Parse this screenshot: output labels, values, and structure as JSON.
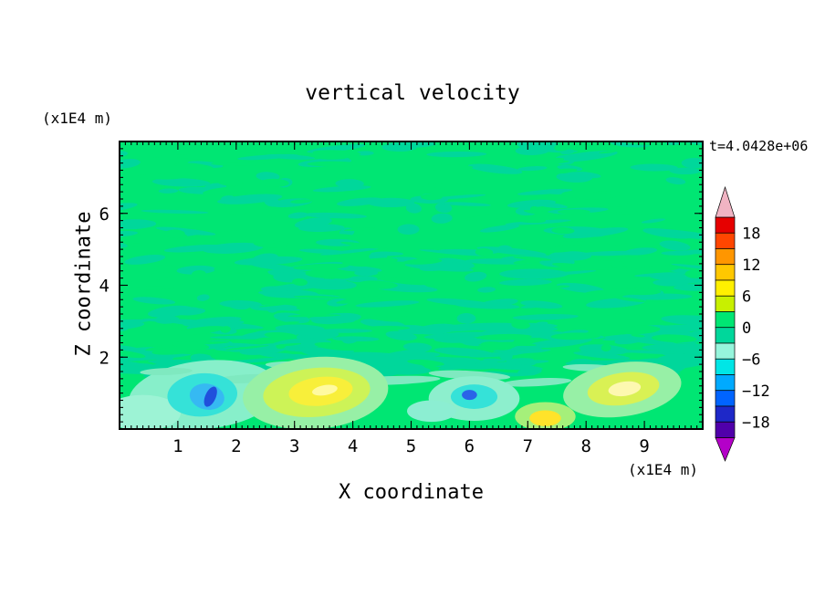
{
  "chart_data": {
    "type": "filled-contour",
    "title": "vertical velocity",
    "time_label": "t=4.0428e+06",
    "xlabel": "X coordinate",
    "zlabel": "Z coordinate",
    "x_unit_label": "(x1E4 m)",
    "z_unit_label": "(x1E4 m)",
    "xlim": [
      0,
      10
    ],
    "zlim": [
      0,
      8
    ],
    "x_tick_labels": [
      "1",
      "2",
      "3",
      "4",
      "5",
      "6",
      "7",
      "8",
      "9"
    ],
    "z_tick_labels": [
      "2",
      "4",
      "6"
    ],
    "x_minor_step": 0.1,
    "z_minor_step": 0.2,
    "field": {
      "base_color": "#00e673",
      "mottle_color": "#00d79b",
      "description": "vertical velocity near zero (green) over most of domain with weak teal mottling; near-surface extrema: downdraft cells (cyan/blue) near x=1.4 and x=6.1, updraft cells (yellow) near x=3.4, x=7.3 and x=8.6"
    },
    "texture": {
      "seed": 1337,
      "count": 250,
      "band_count": 80,
      "base_count": 140
    },
    "features": [
      {
        "x": 1.45,
        "z": 0.95,
        "rx": 1.3,
        "rz": 0.95,
        "rot": -6,
        "color": "#87efca"
      },
      {
        "x": 0.4,
        "z": 0.45,
        "rx": 0.65,
        "rz": 0.5,
        "rot": 0,
        "color": "#9df3d5"
      },
      {
        "x": 2.2,
        "z": 1.4,
        "rx": 0.55,
        "rz": 0.12,
        "rot": -3,
        "color": "#7fe9c0"
      },
      {
        "x": 3.3,
        "z": 1.75,
        "rx": 0.8,
        "rz": 0.13,
        "rot": 2,
        "color": "#7fe9c0"
      },
      {
        "x": 4.6,
        "z": 1.35,
        "rx": 0.9,
        "rz": 0.12,
        "rot": -2,
        "color": "#7fe9c0"
      },
      {
        "x": 6.0,
        "z": 1.5,
        "rx": 0.7,
        "rz": 0.12,
        "rot": 3,
        "color": "#7fe9c0"
      },
      {
        "x": 7.15,
        "z": 1.3,
        "rx": 0.6,
        "rz": 0.11,
        "rot": -3,
        "color": "#7fe9c0"
      },
      {
        "x": 8.1,
        "z": 1.7,
        "rx": 0.5,
        "rz": 0.1,
        "rot": 2,
        "color": "#7fe9c0"
      },
      {
        "x": 0.8,
        "z": 1.6,
        "rx": 0.45,
        "rz": 0.1,
        "rot": -2,
        "color": "#7fe9c0"
      },
      {
        "x": 1.42,
        "z": 0.95,
        "rx": 0.6,
        "rz": 0.6,
        "rot": -4,
        "color": "#35e2d8"
      },
      {
        "x": 1.5,
        "z": 0.9,
        "rx": 0.3,
        "rz": 0.36,
        "rot": 12,
        "color": "#36b9f2"
      },
      {
        "x": 1.56,
        "z": 0.9,
        "rx": 0.09,
        "rz": 0.3,
        "rot": 24,
        "color": "#2050dc"
      },
      {
        "x": 3.36,
        "z": 1.0,
        "rx": 1.25,
        "rz": 1.0,
        "rot": -5,
        "color": "#97f0a6"
      },
      {
        "x": 3.38,
        "z": 1.02,
        "rx": 0.92,
        "rz": 0.68,
        "rot": -5,
        "color": "#cdf357"
      },
      {
        "x": 3.45,
        "z": 1.05,
        "rx": 0.55,
        "rz": 0.4,
        "rot": -6,
        "color": "#f8ef3a"
      },
      {
        "x": 3.52,
        "z": 1.08,
        "rx": 0.22,
        "rz": 0.14,
        "rot": -10,
        "color": "#fffaa0"
      },
      {
        "x": 6.08,
        "z": 0.85,
        "rx": 0.78,
        "rz": 0.62,
        "rot": 0,
        "color": "#8defcd"
      },
      {
        "x": 6.08,
        "z": 0.9,
        "rx": 0.4,
        "rz": 0.34,
        "rot": 0,
        "color": "#35e2d8"
      },
      {
        "x": 6.0,
        "z": 0.95,
        "rx": 0.13,
        "rz": 0.14,
        "rot": 0,
        "color": "#2a64e8"
      },
      {
        "x": 7.3,
        "z": 0.35,
        "rx": 0.52,
        "rz": 0.4,
        "rot": 0,
        "color": "#a5f07a"
      },
      {
        "x": 7.3,
        "z": 0.3,
        "rx": 0.27,
        "rz": 0.22,
        "rot": 0,
        "color": "#ffe32a"
      },
      {
        "x": 8.62,
        "z": 1.1,
        "rx": 1.02,
        "rz": 0.75,
        "rot": -8,
        "color": "#97f0a6"
      },
      {
        "x": 8.64,
        "z": 1.12,
        "rx": 0.62,
        "rz": 0.45,
        "rot": -8,
        "color": "#d9f154"
      },
      {
        "x": 8.66,
        "z": 1.12,
        "rx": 0.28,
        "rz": 0.2,
        "rot": -8,
        "color": "#fdf8b0"
      },
      {
        "x": 5.35,
        "z": 0.5,
        "rx": 0.42,
        "rz": 0.3,
        "rot": 0,
        "color": "#8ceed2"
      }
    ],
    "colorbar": {
      "labels": [
        "18",
        "12",
        "6",
        "0",
        "−6",
        "−12",
        "−18"
      ],
      "level_step": 3,
      "value_range": [
        -21,
        21
      ],
      "segment_colors_top_to_bottom": [
        "#e60000",
        "#ff4600",
        "#ff9600",
        "#ffc800",
        "#fff000",
        "#c8f000",
        "#00e673",
        "#00d79b",
        "#96f5dc",
        "#00e6e6",
        "#00aaff",
        "#0064ff",
        "#1e28c8",
        "#5000aa"
      ],
      "top_arrow_color": "#f0b4c3",
      "bottom_arrow_color": "#b400c8"
    }
  }
}
